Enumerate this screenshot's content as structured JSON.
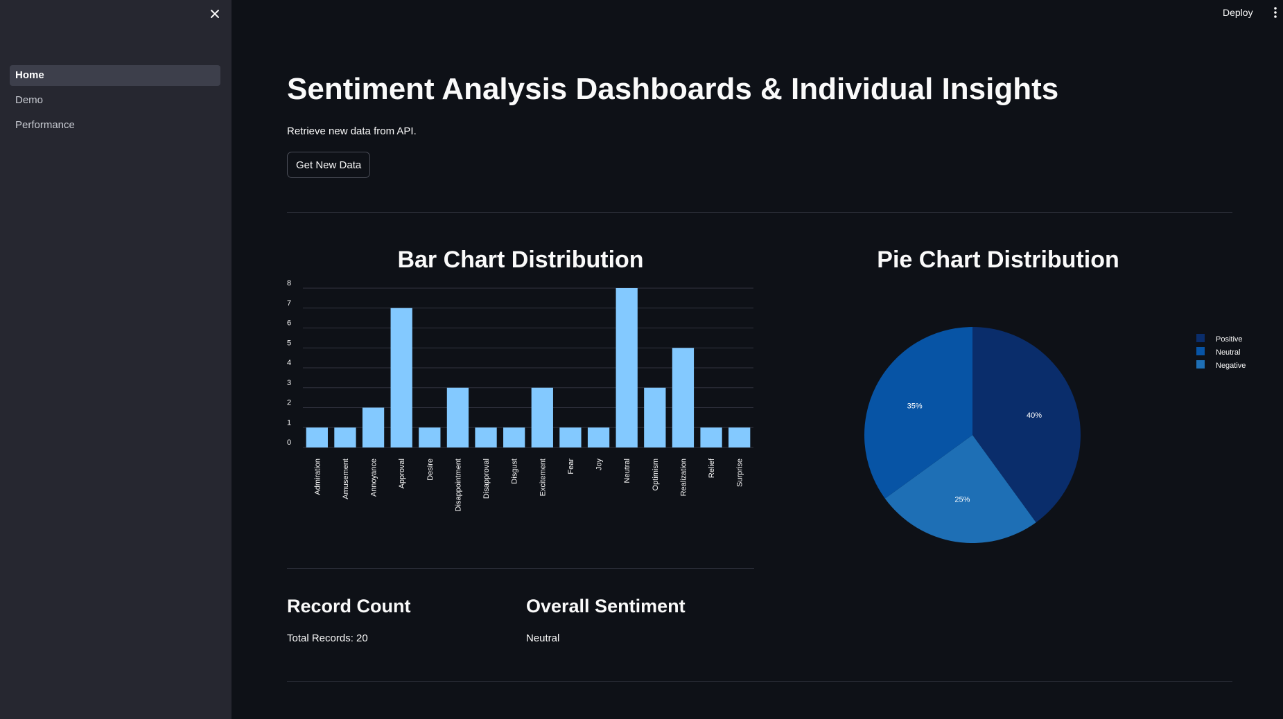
{
  "sidebar": {
    "items": [
      {
        "label": "Home",
        "active": true
      },
      {
        "label": "Demo",
        "active": false
      },
      {
        "label": "Performance",
        "active": false
      }
    ],
    "close_icon": "close-icon"
  },
  "header": {
    "deploy_label": "Deploy",
    "menu_icon": "kebab-menu-icon"
  },
  "main": {
    "title": "Sentiment Analysis Dashboards & Individual Insights",
    "subtitle": "Retrieve new data from API.",
    "get_data_label": "Get New Data"
  },
  "bar_section": {
    "title": "Bar Chart Distribution"
  },
  "pie_section": {
    "title": "Pie Chart Distribution"
  },
  "metrics": {
    "record_count_title": "Record Count",
    "record_count_value": "Total Records: 20",
    "overall_title": "Overall Sentiment",
    "overall_value": "Neutral"
  },
  "colors": {
    "background": "#0e1117",
    "sidebar": "#262730",
    "bar": "#83c9ff",
    "positive": "#0a2d6b",
    "neutral": "#0754a5",
    "negative": "#1e6fb5"
  },
  "chart_data": [
    {
      "type": "bar",
      "title": "Bar Chart Distribution",
      "categories": [
        "Admiration",
        "Amusement",
        "Annoyance",
        "Approval",
        "Desire",
        "Disappointment",
        "Disapproval",
        "Disgust",
        "Excitement",
        "Fear",
        "Joy",
        "Neutral",
        "Optimism",
        "Realization",
        "Relief",
        "Surprise"
      ],
      "values": [
        1,
        1,
        2,
        7,
        1,
        3,
        1,
        1,
        3,
        1,
        1,
        8,
        3,
        5,
        1,
        1
      ],
      "yticks": [
        "0",
        "1",
        "2",
        "3",
        "4",
        "5",
        "6",
        "7",
        "8"
      ],
      "ylim": [
        0,
        8
      ],
      "grid": true
    },
    {
      "type": "pie",
      "title": "Pie Chart Distribution",
      "labels": [
        "Positive",
        "Neutral",
        "Negative"
      ],
      "values": [
        40,
        35,
        25
      ],
      "value_labels": [
        "40%",
        "35%",
        "25%"
      ],
      "legend_position": "right"
    }
  ]
}
